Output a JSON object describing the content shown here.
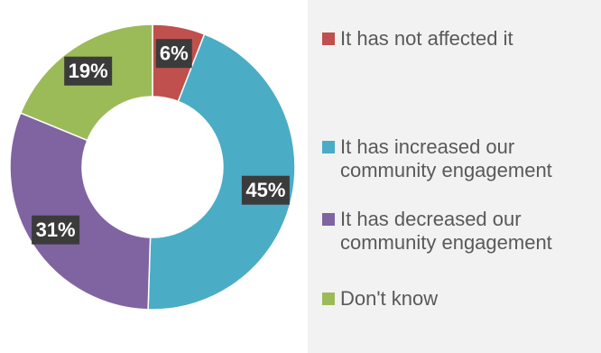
{
  "chart_data": {
    "type": "pie",
    "variant": "doughnut",
    "title": "",
    "categories": [
      "It has not affected it",
      "It has increased our community engagement",
      "It has decreased our community engagement",
      "Don't know"
    ],
    "values": [
      6,
      45,
      31,
      19
    ],
    "data_labels": [
      "6%",
      "45%",
      "31%",
      "19%"
    ],
    "colors": [
      "#c0504d",
      "#4bacc6",
      "#8064a2",
      "#9bbb59"
    ],
    "legend_position": "right"
  }
}
